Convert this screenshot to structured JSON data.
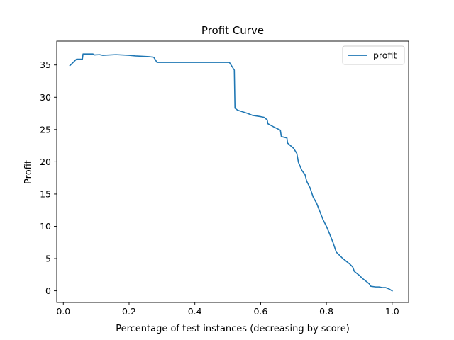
{
  "chart_data": {
    "type": "line",
    "title": "Profit Curve",
    "xlabel": "Percentage of test instances (decreasing by score)",
    "ylabel": "Profit",
    "xlim": [
      -0.02,
      1.05
    ],
    "ylim": [
      -1.8,
      38.7
    ],
    "xticks": [
      0.0,
      0.2,
      0.4,
      0.6,
      0.8,
      1.0
    ],
    "xtick_labels": [
      "0.0",
      "0.2",
      "0.4",
      "0.6",
      "0.8",
      "1.0"
    ],
    "yticks": [
      0,
      5,
      10,
      15,
      20,
      25,
      30,
      35
    ],
    "ytick_labels": [
      "0",
      "5",
      "10",
      "15",
      "20",
      "25",
      "30",
      "35"
    ],
    "grid": false,
    "legend": {
      "position": "top-right",
      "entries": [
        "profit"
      ]
    },
    "series": [
      {
        "name": "profit",
        "color": "#1f77b4",
        "points": [
          [
            0.02,
            34.9
          ],
          [
            0.04,
            35.9
          ],
          [
            0.058,
            35.9
          ],
          [
            0.06,
            36.7
          ],
          [
            0.09,
            36.7
          ],
          [
            0.095,
            36.55
          ],
          [
            0.11,
            36.6
          ],
          [
            0.12,
            36.5
          ],
          [
            0.16,
            36.6
          ],
          [
            0.2,
            36.5
          ],
          [
            0.22,
            36.4
          ],
          [
            0.26,
            36.3
          ],
          [
            0.275,
            36.2
          ],
          [
            0.285,
            35.4
          ],
          [
            0.35,
            35.4
          ],
          [
            0.45,
            35.4
          ],
          [
            0.505,
            35.4
          ],
          [
            0.52,
            34.2
          ],
          [
            0.522,
            28.3
          ],
          [
            0.53,
            28.0
          ],
          [
            0.56,
            27.5
          ],
          [
            0.575,
            27.2
          ],
          [
            0.6,
            27.0
          ],
          [
            0.61,
            26.9
          ],
          [
            0.62,
            26.5
          ],
          [
            0.622,
            25.9
          ],
          [
            0.64,
            25.4
          ],
          [
            0.66,
            24.9
          ],
          [
            0.663,
            23.9
          ],
          [
            0.68,
            23.7
          ],
          [
            0.682,
            22.9
          ],
          [
            0.7,
            22.1
          ],
          [
            0.71,
            21.3
          ],
          [
            0.715,
            19.9
          ],
          [
            0.725,
            18.7
          ],
          [
            0.735,
            18.0
          ],
          [
            0.74,
            17.0
          ],
          [
            0.75,
            16.0
          ],
          [
            0.76,
            14.5
          ],
          [
            0.77,
            13.6
          ],
          [
            0.78,
            12.3
          ],
          [
            0.79,
            11.0
          ],
          [
            0.8,
            10.0
          ],
          [
            0.81,
            8.8
          ],
          [
            0.82,
            7.5
          ],
          [
            0.83,
            6.0
          ],
          [
            0.84,
            5.5
          ],
          [
            0.85,
            5.0
          ],
          [
            0.86,
            4.6
          ],
          [
            0.87,
            4.2
          ],
          [
            0.88,
            3.7
          ],
          [
            0.885,
            3.0
          ],
          [
            0.9,
            2.4
          ],
          [
            0.91,
            1.9
          ],
          [
            0.92,
            1.5
          ],
          [
            0.93,
            1.1
          ],
          [
            0.935,
            0.7
          ],
          [
            0.95,
            0.6
          ],
          [
            0.96,
            0.6
          ],
          [
            0.97,
            0.5
          ],
          [
            0.98,
            0.5
          ],
          [
            0.99,
            0.3
          ],
          [
            1.0,
            0.0
          ]
        ]
      }
    ]
  }
}
